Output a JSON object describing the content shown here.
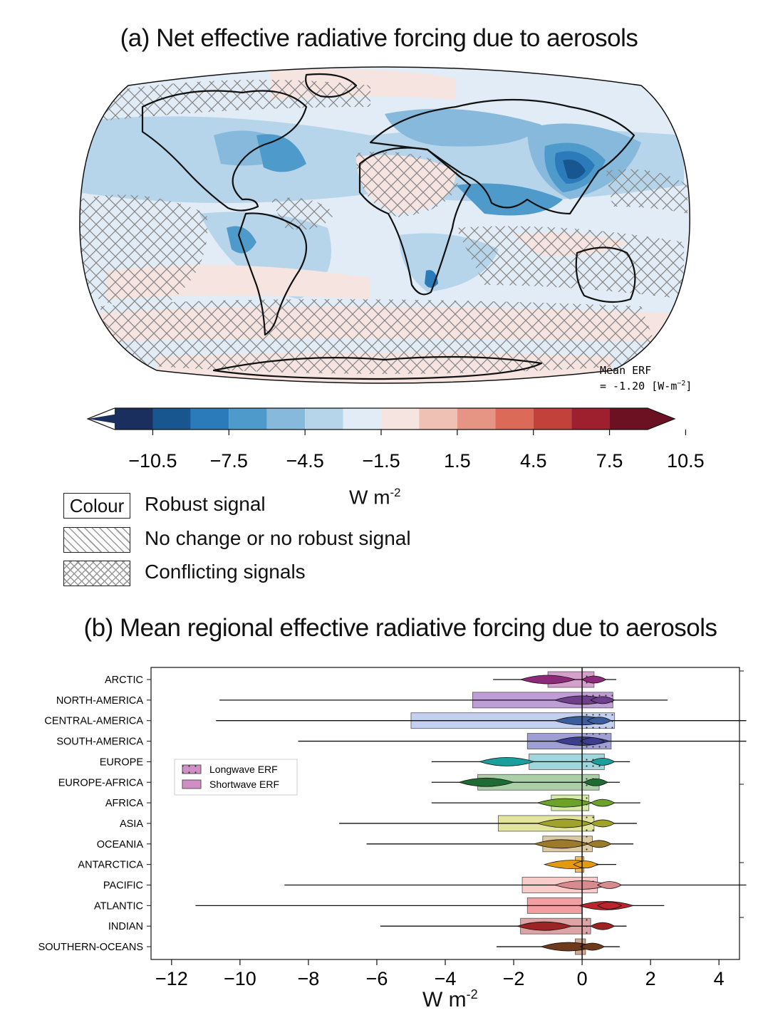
{
  "panel_a": {
    "title": "(a) Net effective radiative forcing due to aerosols",
    "mean_erf_line1": "Mean ERF",
    "mean_erf_line2": "= -1.20 [W-m",
    "mean_erf_sup": "−2",
    "mean_erf_end": "]",
    "colorbar": {
      "colors": [
        "#1b2f5e",
        "#18568f",
        "#2b7bba",
        "#4e9acb",
        "#86b9dc",
        "#b6d5ea",
        "#e1ecf6",
        "#f6e4e1",
        "#efc0b4",
        "#e69585",
        "#db6a58",
        "#c3413b",
        "#9e1f2e",
        "#6b1121"
      ],
      "ticks": [
        "−10.5",
        "−7.5",
        "−4.5",
        "−1.5",
        "1.5",
        "4.5",
        "7.5",
        "10.5"
      ],
      "unit": "W m",
      "unit_sup": "-2"
    },
    "legend": {
      "colour_box": "Colour",
      "colour_label": "Robust signal",
      "nochange_label": "No change or no robust signal",
      "conflict_label": "Conflicting signals"
    }
  },
  "panel_b": {
    "title": "(b) Mean regional effective radiative forcing due to aerosols",
    "xunit": "W m",
    "xunit_sup": "-2",
    "legend": {
      "longwave": "Longwave ERF",
      "shortwave": "Shortwave ERF"
    }
  },
  "chart_data": {
    "type": "bar",
    "title": "(b) Mean regional effective radiative forcing due to aerosols",
    "xlabel": "W m-2",
    "xlim": [
      -12.6,
      4.6
    ],
    "xticks": [
      "−12",
      "−10",
      "−8",
      "−6",
      "−4",
      "−2",
      "0",
      "2",
      "4"
    ],
    "categories": [
      "ARCTIC",
      "NORTH-AMERICA",
      "CENTRAL-AMERICA",
      "SOUTH-AMERICA",
      "EUROPE",
      "EUROPE-AFRICA",
      "AFRICA",
      "ASIA",
      "OCEANIA",
      "ANTARCTICA",
      "PACIFIC",
      "ATLANTIC",
      "INDIAN",
      "SOUTHERN-OCEANS"
    ],
    "colors": [
      "#cf8fc4",
      "#b48ccf",
      "#b9c8ec",
      "#8e8ecf",
      "#8fd0d6",
      "#9cc79a",
      "#cde79a",
      "#dee08e",
      "#d6c193",
      "#f2b24a",
      "#f6c3bf",
      "#f18e90",
      "#d89395",
      "#c89a82"
    ],
    "violin_colors": [
      "#8e2a7a",
      "#6e3f8a",
      "#3b5d9c",
      "#3a3e8c",
      "#1a9e9e",
      "#1e6b34",
      "#6aa22a",
      "#a0a22a",
      "#9c7a2a",
      "#e49a10",
      "#d88b8f",
      "#b8252c",
      "#9c2424",
      "#6e3a1c"
    ],
    "series": [
      {
        "name": "Shortwave ERF",
        "values": [
          -1.0,
          -3.2,
          -5.0,
          -1.6,
          -1.55,
          -3.05,
          -0.9,
          -2.45,
          -1.15,
          -0.2,
          -1.75,
          -1.6,
          -1.8,
          -0.2
        ]
      },
      {
        "name": "Longwave ERF",
        "values": [
          0.35,
          0.9,
          0.95,
          0.85,
          0.65,
          0.5,
          0.2,
          0.35,
          0.3,
          0.05,
          0.45,
          0.0,
          0.25,
          0.1
        ]
      }
    ],
    "violin_ranges": [
      [
        -2.6,
        1.0
      ],
      [
        -10.6,
        2.5
      ],
      [
        -10.7,
        4.8
      ],
      [
        -8.3,
        4.8
      ],
      [
        -4.4,
        1.4
      ],
      [
        -4.4,
        1.1
      ],
      [
        -4.4,
        1.7
      ],
      [
        -7.1,
        1.6
      ],
      [
        -6.3,
        1.5
      ],
      [
        -0.6,
        1.0
      ],
      [
        -8.7,
        4.8
      ],
      [
        -11.3,
        2.4
      ],
      [
        -5.9,
        1.3
      ],
      [
        -2.5,
        1.1
      ]
    ],
    "violin_modes": [
      [
        -1.0,
        0.35
      ],
      [
        0.0,
        0.6
      ],
      [
        0.0,
        0.5
      ],
      [
        0.0,
        0.3
      ],
      [
        -2.2,
        0.6
      ],
      [
        -2.8,
        0.4
      ],
      [
        -0.5,
        0.6
      ],
      [
        -0.5,
        0.6
      ],
      [
        -0.6,
        0.5
      ],
      [
        -0.3,
        0.1
      ],
      [
        0.0,
        0.8
      ],
      [
        0.7,
        0.8
      ],
      [
        -1.1,
        0.6
      ],
      [
        -0.4,
        0.3
      ]
    ]
  }
}
